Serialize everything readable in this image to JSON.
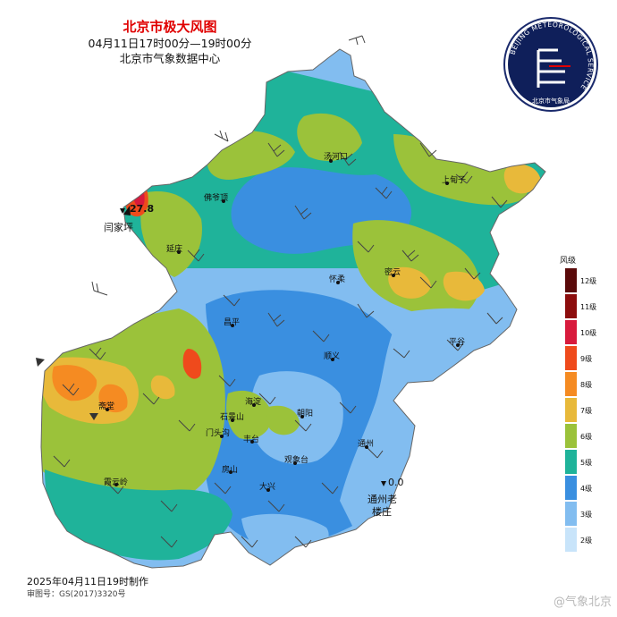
{
  "title": {
    "main": "北京市极大风图",
    "time": "04月11日17时00分—19时00分",
    "org": "北京市气象数据中心"
  },
  "logo": {
    "ring_text": "BEIJING METEOROLOGICAL SERVICE",
    "cn_text": "北京市气象局"
  },
  "places": {
    "tanghekou": "汤河口",
    "shangdianzi": "上甸子",
    "foyeding": "佛爷顶",
    "yanqing": "延庆",
    "huairou": "怀柔",
    "miyun": "密云",
    "changping": "昌平",
    "pinggu": "平谷",
    "shunyi": "顺义",
    "zhaitang": "斋堂",
    "haidian": "海淀",
    "shijingshan": "石景山",
    "chaoyang": "朝阳",
    "mentougou": "门头沟",
    "fengtai": "丰台",
    "tongzhou": "通州",
    "fangshan": "房山",
    "guanxiangtai": "观象台",
    "xiayunling": "霞云岭",
    "daxing": "大兴",
    "menjiaping": "闫家坪",
    "tongzhou_laotao": "通州老",
    "louzhuang": "楼庄"
  },
  "station_values": {
    "menjiaping": "27.8",
    "tongzhou_laotao": "0.0"
  },
  "legend": {
    "title": "风级",
    "items": [
      {
        "label": "12级",
        "color": "#5a0a0a"
      },
      {
        "label": "11级",
        "color": "#8c0d0d"
      },
      {
        "label": "10级",
        "color": "#d81a3c"
      },
      {
        "label": "9级",
        "color": "#ef4a1c"
      },
      {
        "label": "8级",
        "color": "#f58b22"
      },
      {
        "label": "7级",
        "color": "#e8b93a"
      },
      {
        "label": "6级",
        "color": "#9bc23a"
      },
      {
        "label": "5级",
        "color": "#1fb39a"
      },
      {
        "label": "4级",
        "color": "#3a8fe0"
      },
      {
        "label": "3级",
        "color": "#82bdf0"
      },
      {
        "label": "2级",
        "color": "#c8e4fa"
      }
    ]
  },
  "footer": {
    "date": "2025年04月11日19时制作",
    "review": "审图号：GS(2017)3320号",
    "watermark": "@气象北京"
  }
}
